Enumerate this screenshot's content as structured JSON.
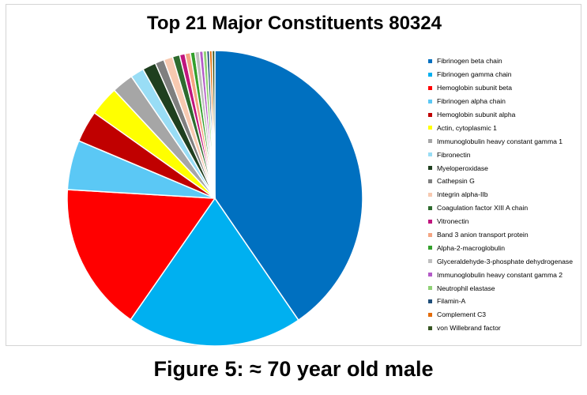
{
  "caption": "Figure 5: ≈ 70 year old male",
  "chart_data": {
    "type": "pie",
    "title": "Top 21 Major Constituents 80324",
    "legend_position": "right",
    "slices": [
      {
        "label": "Fibrinogen beta chain",
        "value": 41.0,
        "color": "#0070c0"
      },
      {
        "label": "Fibrinogen gamma chain",
        "value": 19.5,
        "color": "#00b0f0"
      },
      {
        "label": "Hemoglobin subunit beta",
        "value": 16.5,
        "color": "#ff0000"
      },
      {
        "label": "Fibrinogen alpha chain",
        "value": 5.5,
        "color": "#5bc8f5"
      },
      {
        "label": "Hemoglobin subunit alpha",
        "value": 3.5,
        "color": "#c00000"
      },
      {
        "label": "Actin, cytoplasmic 1",
        "value": 3.3,
        "color": "#ffff00"
      },
      {
        "label": "Immunoglobulin heavy constant gamma 1",
        "value": 2.4,
        "color": "#a6a6a6"
      },
      {
        "label": "Fibronectin",
        "value": 1.5,
        "color": "#99ddf5"
      },
      {
        "label": "Myeloperoxidase",
        "value": 1.5,
        "color": "#1f3f1f"
      },
      {
        "label": "Cathepsin G",
        "value": 1.0,
        "color": "#7f7f7f"
      },
      {
        "label": "Integrin alpha-IIb",
        "value": 1.0,
        "color": "#f7c9b0"
      },
      {
        "label": "Coagulation factor XIII A chain",
        "value": 0.8,
        "color": "#2e6b2e"
      },
      {
        "label": "Vitronectin",
        "value": 0.6,
        "color": "#c0157e"
      },
      {
        "label": "Band 3 anion transport protein",
        "value": 0.6,
        "color": "#f4a582"
      },
      {
        "label": "Alpha-2-macroglobulin",
        "value": 0.5,
        "color": "#33a02c"
      },
      {
        "label": "Glyceraldehyde-3-phosphate dehydrogenase",
        "value": 0.5,
        "color": "#bfbfbf"
      },
      {
        "label": "Immunoglobulin heavy constant gamma 2",
        "value": 0.4,
        "color": "#b35ac7"
      },
      {
        "label": "Neutrophil elastase",
        "value": 0.4,
        "color": "#8fd175"
      },
      {
        "label": "Filamin-A",
        "value": 0.3,
        "color": "#1f4e79"
      },
      {
        "label": "Complement C3",
        "value": 0.3,
        "color": "#e46c0a"
      },
      {
        "label": "von Willebrand factor",
        "value": 0.3,
        "color": "#375623"
      }
    ]
  }
}
